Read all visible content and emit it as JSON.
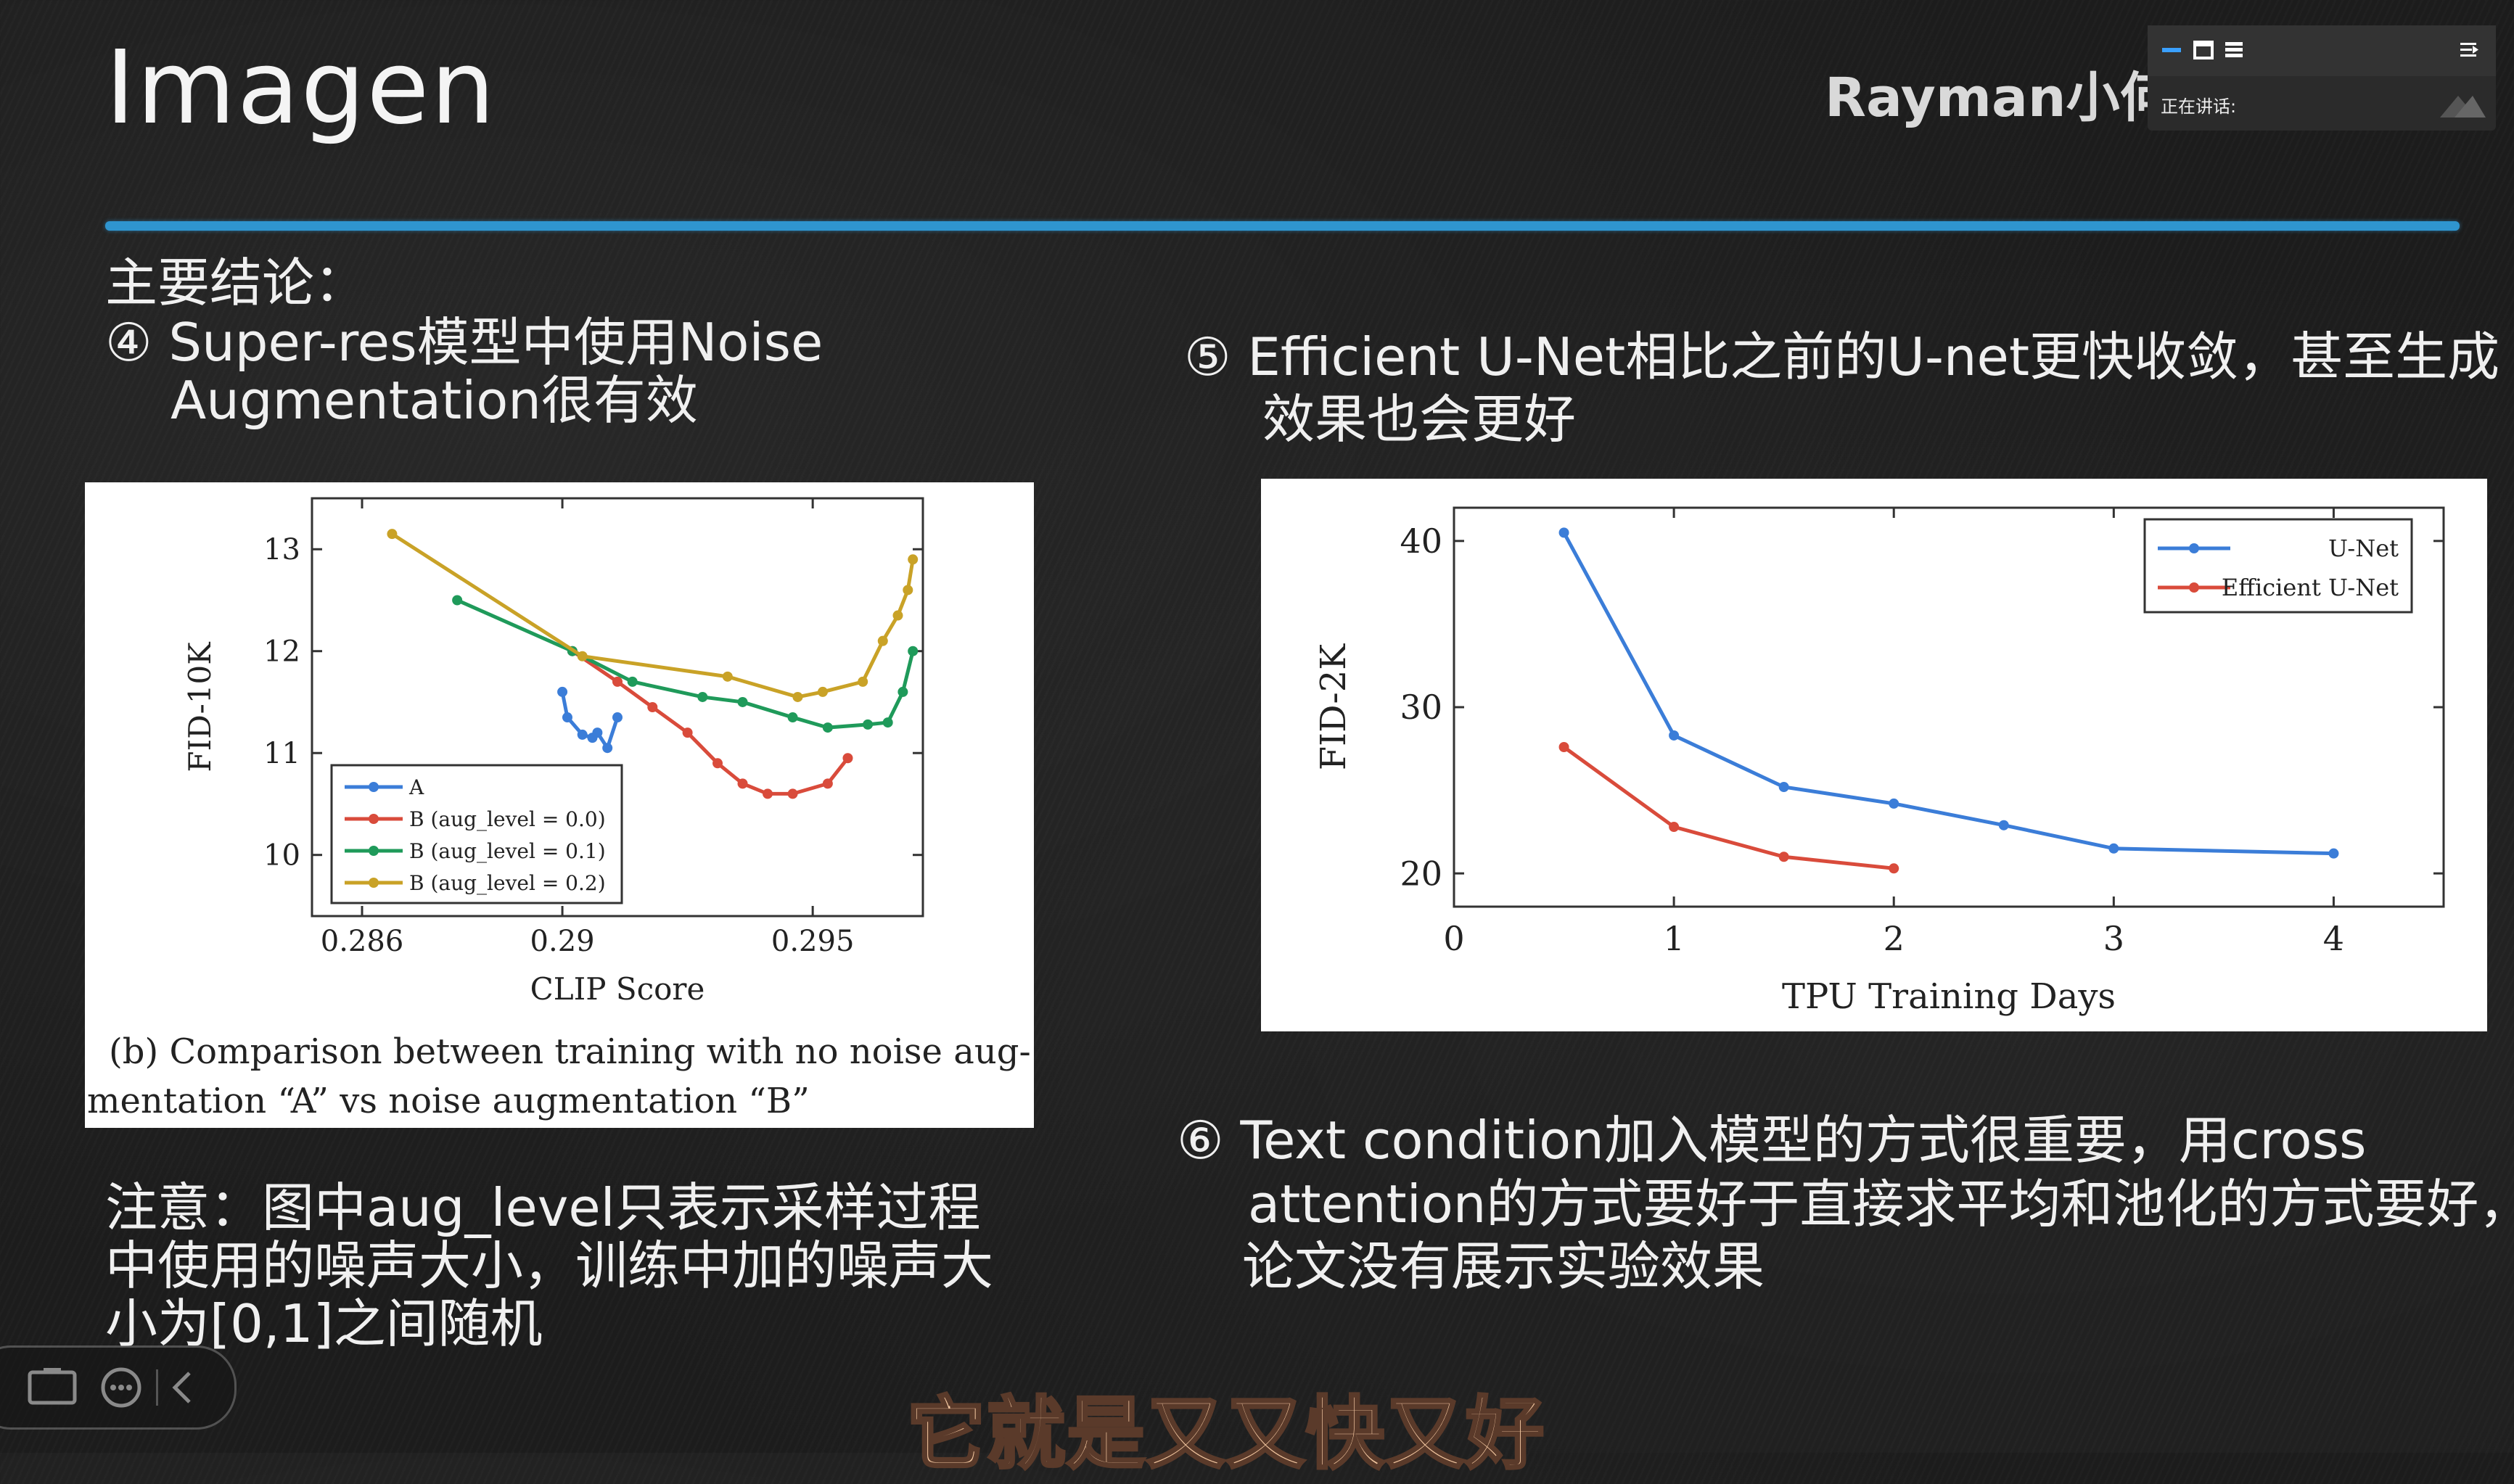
{
  "header": {
    "title": "Imagen",
    "author": "Rayman小何"
  },
  "left": {
    "heading": "主要结论：",
    "point4_line1": "④ Super-res模型中使用Noise",
    "point4_line2": "Augmentation很有效",
    "note_line1": "注意：图中aug_level只表示采样过程",
    "note_line2": "中使用的噪声大小，训练中加的噪声大",
    "note_line3": "小为[0,1]之间随机"
  },
  "right": {
    "point5_line1": "⑤ Efficient U-Net相比之前的U-net更快收敛，甚至生成",
    "point5_line2": "效果也会更好",
    "point6_line1": "⑥ Text condition加入模型的方式很重要，用cross",
    "point6_line2": "attention的方式要好于直接求平均和池化的方式要好，",
    "point6_line3": "论文没有展示实验效果"
  },
  "meeting": {
    "speaking_label": "正在讲话:"
  },
  "subtitle": "它就是又又快又好",
  "chart_data": [
    {
      "type": "line",
      "xlabel": "CLIP Score",
      "ylabel": "FID-10K",
      "xlim": [
        0.285,
        0.2972
      ],
      "ylim": [
        9.4,
        13.5
      ],
      "xticks": [
        0.286,
        0.29,
        0.295
      ],
      "xtick_labels": [
        "0.286",
        "0.29",
        "0.295"
      ],
      "yticks": [
        10,
        11,
        12,
        13
      ],
      "legend_position": "bottom-left",
      "caption_line1": "(b) Comparison between training with no noise aug-",
      "caption_line2": "mentation “A” vs noise augmentation “B”",
      "series": [
        {
          "name": "A",
          "color": "#3b7dd8",
          "x": [
            0.29,
            0.2901,
            0.2904,
            0.2906,
            0.2907,
            0.2909,
            0.2911
          ],
          "y": [
            11.6,
            11.35,
            11.18,
            11.15,
            11.2,
            11.05,
            11.35
          ]
        },
        {
          "name": "B (aug_level = 0.0)",
          "color": "#d94b3b",
          "x": [
            0.2902,
            0.2911,
            0.2918,
            0.2925,
            0.2931,
            0.2936,
            0.2941,
            0.2946,
            0.2953,
            0.2957
          ],
          "y": [
            12.0,
            11.7,
            11.45,
            11.2,
            10.9,
            10.7,
            10.6,
            10.6,
            10.7,
            10.95
          ]
        },
        {
          "name": "B (aug_level = 0.1)",
          "color": "#1f9a5a",
          "x": [
            0.2879,
            0.2902,
            0.2914,
            0.2928,
            0.2936,
            0.2946,
            0.2953,
            0.2961,
            0.2965,
            0.2968,
            0.297
          ],
          "y": [
            12.5,
            12.0,
            11.7,
            11.55,
            11.5,
            11.35,
            11.25,
            11.28,
            11.3,
            11.6,
            12.0
          ]
        },
        {
          "name": "B (aug_level = 0.2)",
          "color": "#c9a227",
          "x": [
            0.2866,
            0.2904,
            0.2933,
            0.2947,
            0.2952,
            0.296,
            0.2964,
            0.2967,
            0.2969,
            0.297
          ],
          "y": [
            13.15,
            11.95,
            11.75,
            11.55,
            11.6,
            11.7,
            12.1,
            12.35,
            12.6,
            12.9
          ]
        }
      ]
    },
    {
      "type": "line",
      "xlabel": "TPU Training Days",
      "ylabel": "FID-2K",
      "xlim": [
        0,
        4.5
      ],
      "ylim": [
        18,
        42
      ],
      "xticks": [
        0,
        1,
        2,
        3,
        4
      ],
      "yticks": [
        20,
        30,
        40
      ],
      "legend_position": "top-right",
      "series": [
        {
          "name": "U-Net",
          "color": "#3b7dd8",
          "x": [
            0.5,
            1,
            1.5,
            2,
            2.5,
            3,
            4
          ],
          "y": [
            40.5,
            28.3,
            25.2,
            24.2,
            22.9,
            21.5,
            21.2
          ]
        },
        {
          "name": "Efficient U-Net",
          "color": "#d94b3b",
          "x": [
            0.5,
            1,
            1.5,
            2
          ],
          "y": [
            27.6,
            22.8,
            21.0,
            20.3
          ]
        }
      ]
    }
  ]
}
